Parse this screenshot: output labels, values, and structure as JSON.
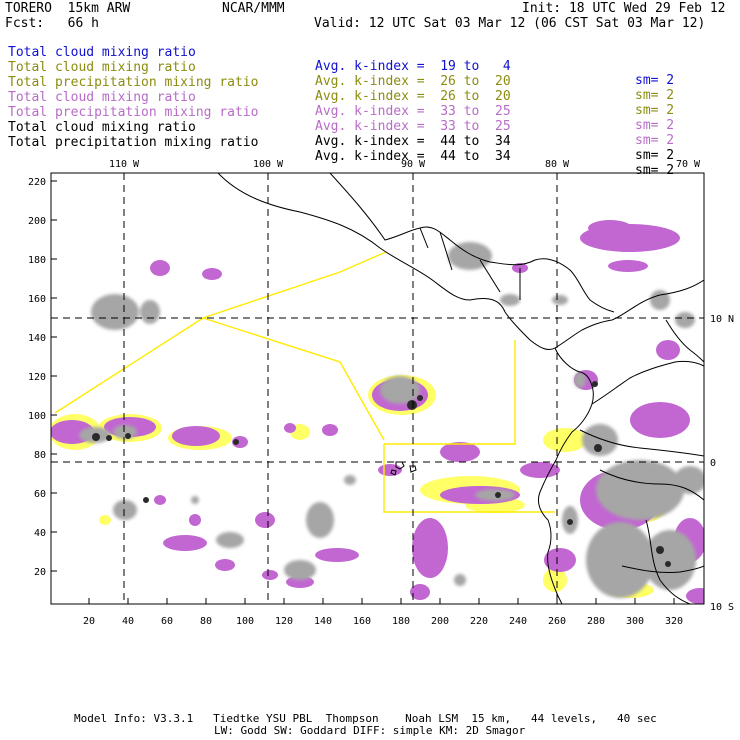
{
  "header": {
    "model": "TORERO  15km ARW",
    "org": "NCAR/MMM",
    "init": "Init: 18 UTC Wed 29 Feb 12",
    "fcst": "Fcst:   66 h",
    "valid": "Valid: 12 UTC Sat 03 Mar 12 (06 CST Sat 03 Mar 12)"
  },
  "legend": [
    {
      "field": "Total cloud mixing ratio",
      "kindex": "Avg. k-index =  19 to   4",
      "sm": "sm= 2",
      "color": "#1010d0"
    },
    {
      "field": "Total cloud mixing ratio",
      "kindex": "Avg. k-index =  26 to  20",
      "sm": "sm= 2",
      "color": "#8c8c10"
    },
    {
      "field": "Total precipitation mixing ratio",
      "kindex": "Avg. k-index =  26 to  20",
      "sm": "sm= 2",
      "color": "#8c8c10"
    },
    {
      "field": "Total cloud mixing ratio",
      "kindex": "Avg. k-index =  33 to  25",
      "sm": "sm= 2",
      "color": "#b86cc8"
    },
    {
      "field": "Total precipitation mixing ratio",
      "kindex": "Avg. k-index =  33 to  25",
      "sm": "sm= 2",
      "color": "#b86cc8"
    },
    {
      "field": "Total cloud mixing ratio",
      "kindex": "Avg. k-index =  44 to  34",
      "sm": "sm= 2",
      "color": "#000000"
    },
    {
      "field": "Total precipitation mixing ratio",
      "kindex": "Avg. k-index =  44 to  34",
      "sm": "sm= 2",
      "color": "#000000"
    }
  ],
  "map": {
    "top_longitude_labels": [
      "110 W",
      "100 W",
      "90 W",
      "80 W",
      "70 W"
    ],
    "right_latitude_labels": [
      "10 N",
      "0",
      "10 S"
    ],
    "left_y_ticks": [
      "220",
      "200",
      "180",
      "160",
      "140",
      "120",
      "100",
      "80",
      "60",
      "40",
      "20"
    ],
    "bottom_x_ticks": [
      "20",
      "40",
      "60",
      "80",
      "100",
      "120",
      "140",
      "160",
      "180",
      "200",
      "220",
      "240",
      "260",
      "280",
      "300",
      "320"
    ],
    "colors": {
      "shade_gray": "#a6a6a6",
      "shade_dark": "#2a2a2a",
      "shade_purple": "#c266d2",
      "shade_yellow": "#ffff66",
      "outline_yellow": "#ffea00",
      "coast": "#000000"
    }
  },
  "footer": {
    "line1": "Model Info: V3.3.1   Tiedtke YSU PBL  Thompson    Noah LSM  15 km,   44 levels,   40 sec",
    "line2": "LW: Godd SW: Goddard DIFF: simple KM: 2D Smagor"
  }
}
